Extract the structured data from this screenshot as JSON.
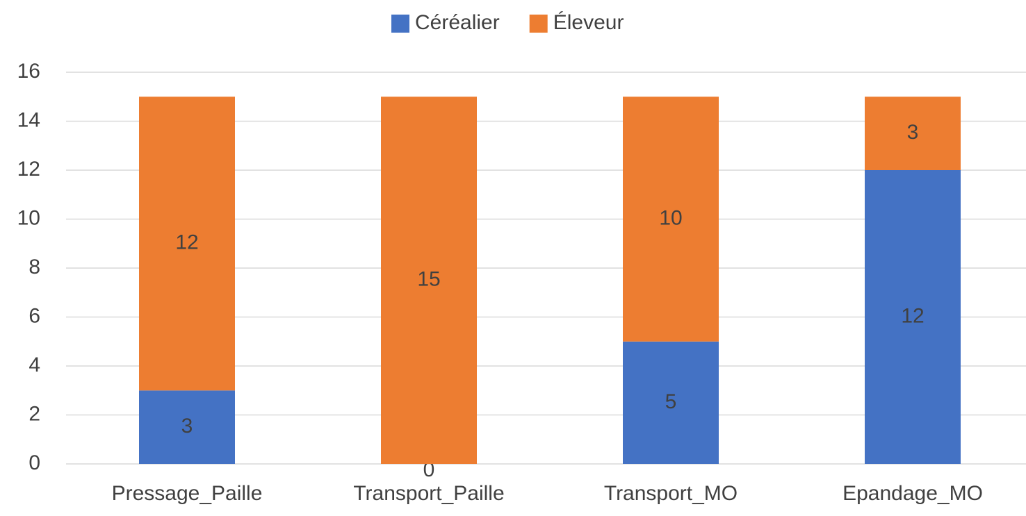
{
  "chart_data": {
    "type": "bar",
    "stacked": true,
    "categories": [
      "Pressage_Paille",
      "Transport_Paille",
      "Transport_MO",
      "Epandage_MO"
    ],
    "series": [
      {
        "name": "Céréalier",
        "color": "#4472c4",
        "values": [
          3,
          0,
          5,
          12
        ]
      },
      {
        "name": "Éleveur",
        "color": "#ed7d31",
        "values": [
          12,
          15,
          10,
          3
        ]
      }
    ],
    "ylim": [
      0,
      16
    ],
    "yticks": [
      0,
      2,
      4,
      6,
      8,
      10,
      12,
      14,
      16
    ],
    "grid": true,
    "legend": "top"
  }
}
